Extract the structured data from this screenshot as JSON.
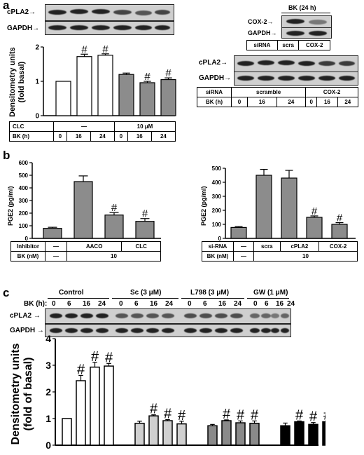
{
  "panels": {
    "a": "a",
    "b": "b",
    "c": "c"
  },
  "blot_labels": {
    "cpla2": "cPLA2",
    "gapdh": "GAPDH",
    "cox2": "COX-2",
    "bk24": "BK (24 h)"
  },
  "panel_a": {
    "ylabel_line1": "Densitometry units",
    "ylabel_line2": "(fold basal)",
    "table": {
      "row1_label": "CLC",
      "row1_vehicle": "—",
      "row1_conc": "10 μM",
      "row2_label": "BK (h)",
      "bk_values": [
        "0",
        "16",
        "24",
        "0",
        "16",
        "24"
      ]
    },
    "right_small_table": {
      "label": "siRNA",
      "scra": "scra",
      "cox2": "COX-2"
    },
    "right_table": {
      "row1_label": "siRNA",
      "scramble": "scramble",
      "cox2": "COX-2",
      "row2_label": "BK (h)",
      "bk_values": [
        "0",
        "16",
        "24",
        "0",
        "16",
        "24"
      ]
    }
  },
  "panel_b": {
    "ylabel": "PGE2 (pg/ml)",
    "left_table": {
      "row1_label": "Inhibitor",
      "dash": "—",
      "aaco": "AACO",
      "clc": "CLC",
      "row2_label": "BK (nM)",
      "bk_dash": "—",
      "bk_conc": "10"
    },
    "right_table": {
      "row1_label": "si-RNA",
      "dash": "—",
      "scra": "scra",
      "cpla2": "cPLA2",
      "cox2": "COX-2",
      "row2_label": "BK (nM)",
      "bk_dash": "—",
      "bk_conc": "10"
    }
  },
  "panel_c": {
    "bk_label": "BK (h):",
    "groups": [
      "Control",
      "Sc (3 μM)",
      "L798 (3 μM)",
      "GW (1 μM)"
    ],
    "times": [
      "0",
      "6",
      "16",
      "24"
    ],
    "ylabel_line1": "Densitometry units",
    "ylabel_line2": "(fold of basal)"
  },
  "chart_data": [
    {
      "type": "bar",
      "panel": "a",
      "categories": [
        "0",
        "16",
        "24",
        "0",
        "16",
        "24"
      ],
      "values": [
        1.0,
        1.72,
        1.76,
        1.2,
        0.96,
        1.05
      ],
      "errors": [
        0,
        0.07,
        0.04,
        0.04,
        0.04,
        0.05
      ],
      "fills": [
        "#ffffff",
        "#ffffff",
        "#ffffff",
        "#8c8c8c",
        "#8c8c8c",
        "#8c8c8c"
      ],
      "marks": [
        "",
        "#",
        "#",
        "",
        "#",
        "#"
      ],
      "ylim": [
        0,
        2
      ],
      "yticks": [
        "0",
        "1",
        "2"
      ]
    },
    {
      "type": "bar",
      "panel": "b-left",
      "values": [
        80,
        450,
        185,
        135
      ],
      "errors": [
        8,
        45,
        20,
        22
      ],
      "marks": [
        "",
        "",
        "#",
        "#"
      ],
      "ylim": [
        0,
        600
      ],
      "yticks": [
        "0",
        "100",
        "200",
        "300",
        "400",
        "500",
        "600"
      ],
      "fill": "#8c8c8c"
    },
    {
      "type": "bar",
      "panel": "b-right",
      "values": [
        78,
        450,
        430,
        150,
        100
      ],
      "errors": [
        6,
        42,
        55,
        10,
        12
      ],
      "marks": [
        "",
        "",
        "",
        "#",
        "#"
      ],
      "ylim": [
        0,
        500
      ],
      "yticks": [
        "0",
        "100",
        "200",
        "300",
        "400",
        "500"
      ],
      "fill": "#8c8c8c"
    },
    {
      "type": "bar",
      "panel": "c",
      "categories": [
        "0",
        "6",
        "16",
        "24",
        "0",
        "6",
        "16",
        "24",
        "0",
        "6",
        "16",
        "24",
        "0",
        "6",
        "16",
        "24"
      ],
      "values": [
        1.0,
        2.42,
        2.93,
        2.97,
        0.82,
        1.1,
        0.92,
        0.8,
        0.73,
        0.92,
        0.84,
        0.82,
        0.73,
        0.88,
        0.78,
        0.88
      ],
      "errors": [
        0,
        0.2,
        0.18,
        0.1,
        0.08,
        0.04,
        0.04,
        0.1,
        0.05,
        0.03,
        0.07,
        0.09,
        0.1,
        0.03,
        0.07,
        0.03
      ],
      "marks": [
        "",
        "#",
        "#",
        "#",
        "",
        "#",
        "#",
        "#",
        "",
        "#",
        "#",
        "#",
        "",
        "#",
        "#",
        "#"
      ],
      "group_fills": [
        "#ffffff",
        "#d0d0d0",
        "#8a8a8a",
        "#000000"
      ],
      "ylim": [
        0,
        4
      ],
      "yticks": [
        "0",
        "1",
        "2",
        "3",
        "4"
      ]
    }
  ]
}
